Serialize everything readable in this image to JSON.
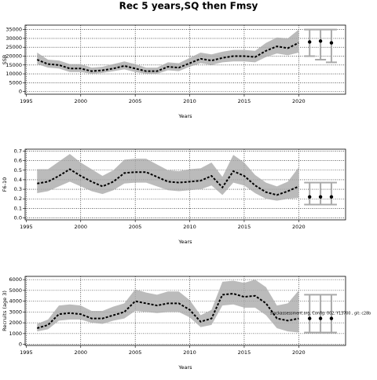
{
  "title": "Rec 5 years,SQ then Fmsy",
  "chart_data": [
    {
      "type": "line",
      "xlabel": "Years",
      "ylabel": "SSB",
      "x": [
        1996,
        1997,
        1998,
        1999,
        2000,
        2001,
        2002,
        2003,
        2004,
        2005,
        2006,
        2007,
        2008,
        2009,
        2010,
        2011,
        2012,
        2013,
        2014,
        2015,
        2016,
        2017,
        2018,
        2019,
        2020
      ],
      "values": [
        18000,
        15500,
        15000,
        13000,
        13000,
        11500,
        12000,
        13000,
        14500,
        13000,
        11500,
        11500,
        14000,
        13500,
        16000,
        18500,
        17500,
        19000,
        20000,
        20000,
        19500,
        23000,
        25500,
        24500,
        27500
      ],
      "low": [
        15500,
        13500,
        13000,
        11000,
        11000,
        10000,
        10500,
        11500,
        12500,
        11000,
        10000,
        10000,
        12000,
        11500,
        14000,
        16000,
        15000,
        16500,
        17000,
        17000,
        16500,
        19500,
        21500,
        20500,
        22000
      ],
      "high": [
        22000,
        18000,
        17500,
        15500,
        15500,
        13500,
        14000,
        15500,
        17000,
        15500,
        13500,
        13500,
        16500,
        16000,
        19000,
        22000,
        21000,
        22500,
        23500,
        23500,
        23000,
        27500,
        30500,
        30000,
        35000
      ],
      "forecast": {
        "x": [
          2021,
          2022,
          2023
        ],
        "values": [
          28000,
          28500,
          27500
        ],
        "low": [
          20000,
          18000,
          16500
        ],
        "high": [
          35000,
          35000,
          35000
        ]
      },
      "xlim": [
        1994.9,
        2024.3
      ],
      "xticks": [
        1995,
        2000,
        2005,
        2010,
        2015,
        2020
      ],
      "ylim": [
        -1500,
        37500
      ],
      "yticks": [
        0,
        5000,
        10000,
        15000,
        20000,
        25000,
        30000,
        35000
      ],
      "grid": true
    },
    {
      "type": "line",
      "xlabel": "Years",
      "ylabel": "F6-10",
      "x": [
        1996,
        1997,
        1998,
        1999,
        2000,
        2001,
        2002,
        2003,
        2004,
        2005,
        2006,
        2007,
        2008,
        2009,
        2010,
        2011,
        2012,
        2013,
        2014,
        2015,
        2016,
        2017,
        2018,
        2019,
        2020
      ],
      "values": [
        0.36,
        0.38,
        0.44,
        0.51,
        0.44,
        0.38,
        0.33,
        0.38,
        0.47,
        0.48,
        0.48,
        0.43,
        0.38,
        0.37,
        0.38,
        0.39,
        0.44,
        0.32,
        0.49,
        0.44,
        0.34,
        0.27,
        0.24,
        0.28,
        0.33
      ],
      "low": [
        0.26,
        0.28,
        0.33,
        0.38,
        0.33,
        0.28,
        0.25,
        0.29,
        0.36,
        0.37,
        0.37,
        0.33,
        0.29,
        0.28,
        0.29,
        0.3,
        0.34,
        0.24,
        0.37,
        0.34,
        0.26,
        0.2,
        0.18,
        0.2,
        0.21
      ],
      "high": [
        0.51,
        0.51,
        0.59,
        0.67,
        0.58,
        0.51,
        0.44,
        0.5,
        0.61,
        0.62,
        0.62,
        0.56,
        0.5,
        0.49,
        0.51,
        0.52,
        0.58,
        0.43,
        0.66,
        0.58,
        0.45,
        0.37,
        0.33,
        0.38,
        0.53
      ],
      "forecast": {
        "x": [
          2021,
          2022,
          2023
        ],
        "values": [
          0.22,
          0.22,
          0.22
        ],
        "low": [
          0.14,
          0.14,
          0.14
        ],
        "high": [
          0.37,
          0.37,
          0.37
        ]
      },
      "xlim": [
        1994.9,
        2024.3
      ],
      "xticks": [
        1995,
        2000,
        2005,
        2010,
        2015,
        2020
      ],
      "ylim": [
        -0.02,
        0.72
      ],
      "yticks": [
        {
          "value": 0,
          "label": "0.0"
        },
        0.1,
        0.2,
        0.3,
        0.4,
        0.5,
        0.6,
        0.7
      ],
      "grid": true
    },
    {
      "type": "line",
      "xlabel": "Years",
      "ylabel": "Recruits (age 3)",
      "annotation": "stockassessment.org, Config: 002, Y13700 , git: c28b",
      "x": [
        1996,
        1997,
        1998,
        1999,
        2000,
        2001,
        2002,
        2003,
        2004,
        2005,
        2006,
        2007,
        2008,
        2009,
        2010,
        2011,
        2012,
        2013,
        2014,
        2015,
        2016,
        2017,
        2018,
        2019,
        2020
      ],
      "values": [
        1500,
        1800,
        2800,
        2900,
        2800,
        2400,
        2400,
        2700,
        3000,
        4000,
        3800,
        3600,
        3800,
        3800,
        3200,
        2100,
        2400,
        4600,
        4700,
        4400,
        4500,
        3800,
        2400,
        2200,
        2400
      ],
      "low": [
        1200,
        1400,
        2200,
        2300,
        2300,
        2000,
        1900,
        2200,
        2400,
        3100,
        3000,
        2900,
        3000,
        3000,
        2500,
        1600,
        1800,
        3600,
        3700,
        3400,
        3400,
        2700,
        1500,
        1200,
        1100
      ],
      "high": [
        1900,
        2300,
        3600,
        3700,
        3600,
        3100,
        3100,
        3500,
        3800,
        5100,
        4800,
        4600,
        4900,
        4900,
        4100,
        2700,
        3200,
        5800,
        5900,
        5700,
        6000,
        5300,
        3600,
        3800,
        5000
      ],
      "forecast": {
        "x": [
          2021,
          2022,
          2023
        ],
        "values": [
          2400,
          2400,
          2400
        ],
        "low": [
          1100,
          1100,
          1100
        ],
        "high": [
          4600,
          4600,
          4600
        ]
      },
      "xlim": [
        1994.9,
        2024.3
      ],
      "xticks": [
        1995,
        2000,
        2005,
        2010,
        2015,
        2020
      ],
      "ylim": [
        -100,
        6300
      ],
      "yticks": [
        0,
        1000,
        2000,
        3000,
        4000,
        5000,
        6000
      ],
      "grid": true
    }
  ]
}
